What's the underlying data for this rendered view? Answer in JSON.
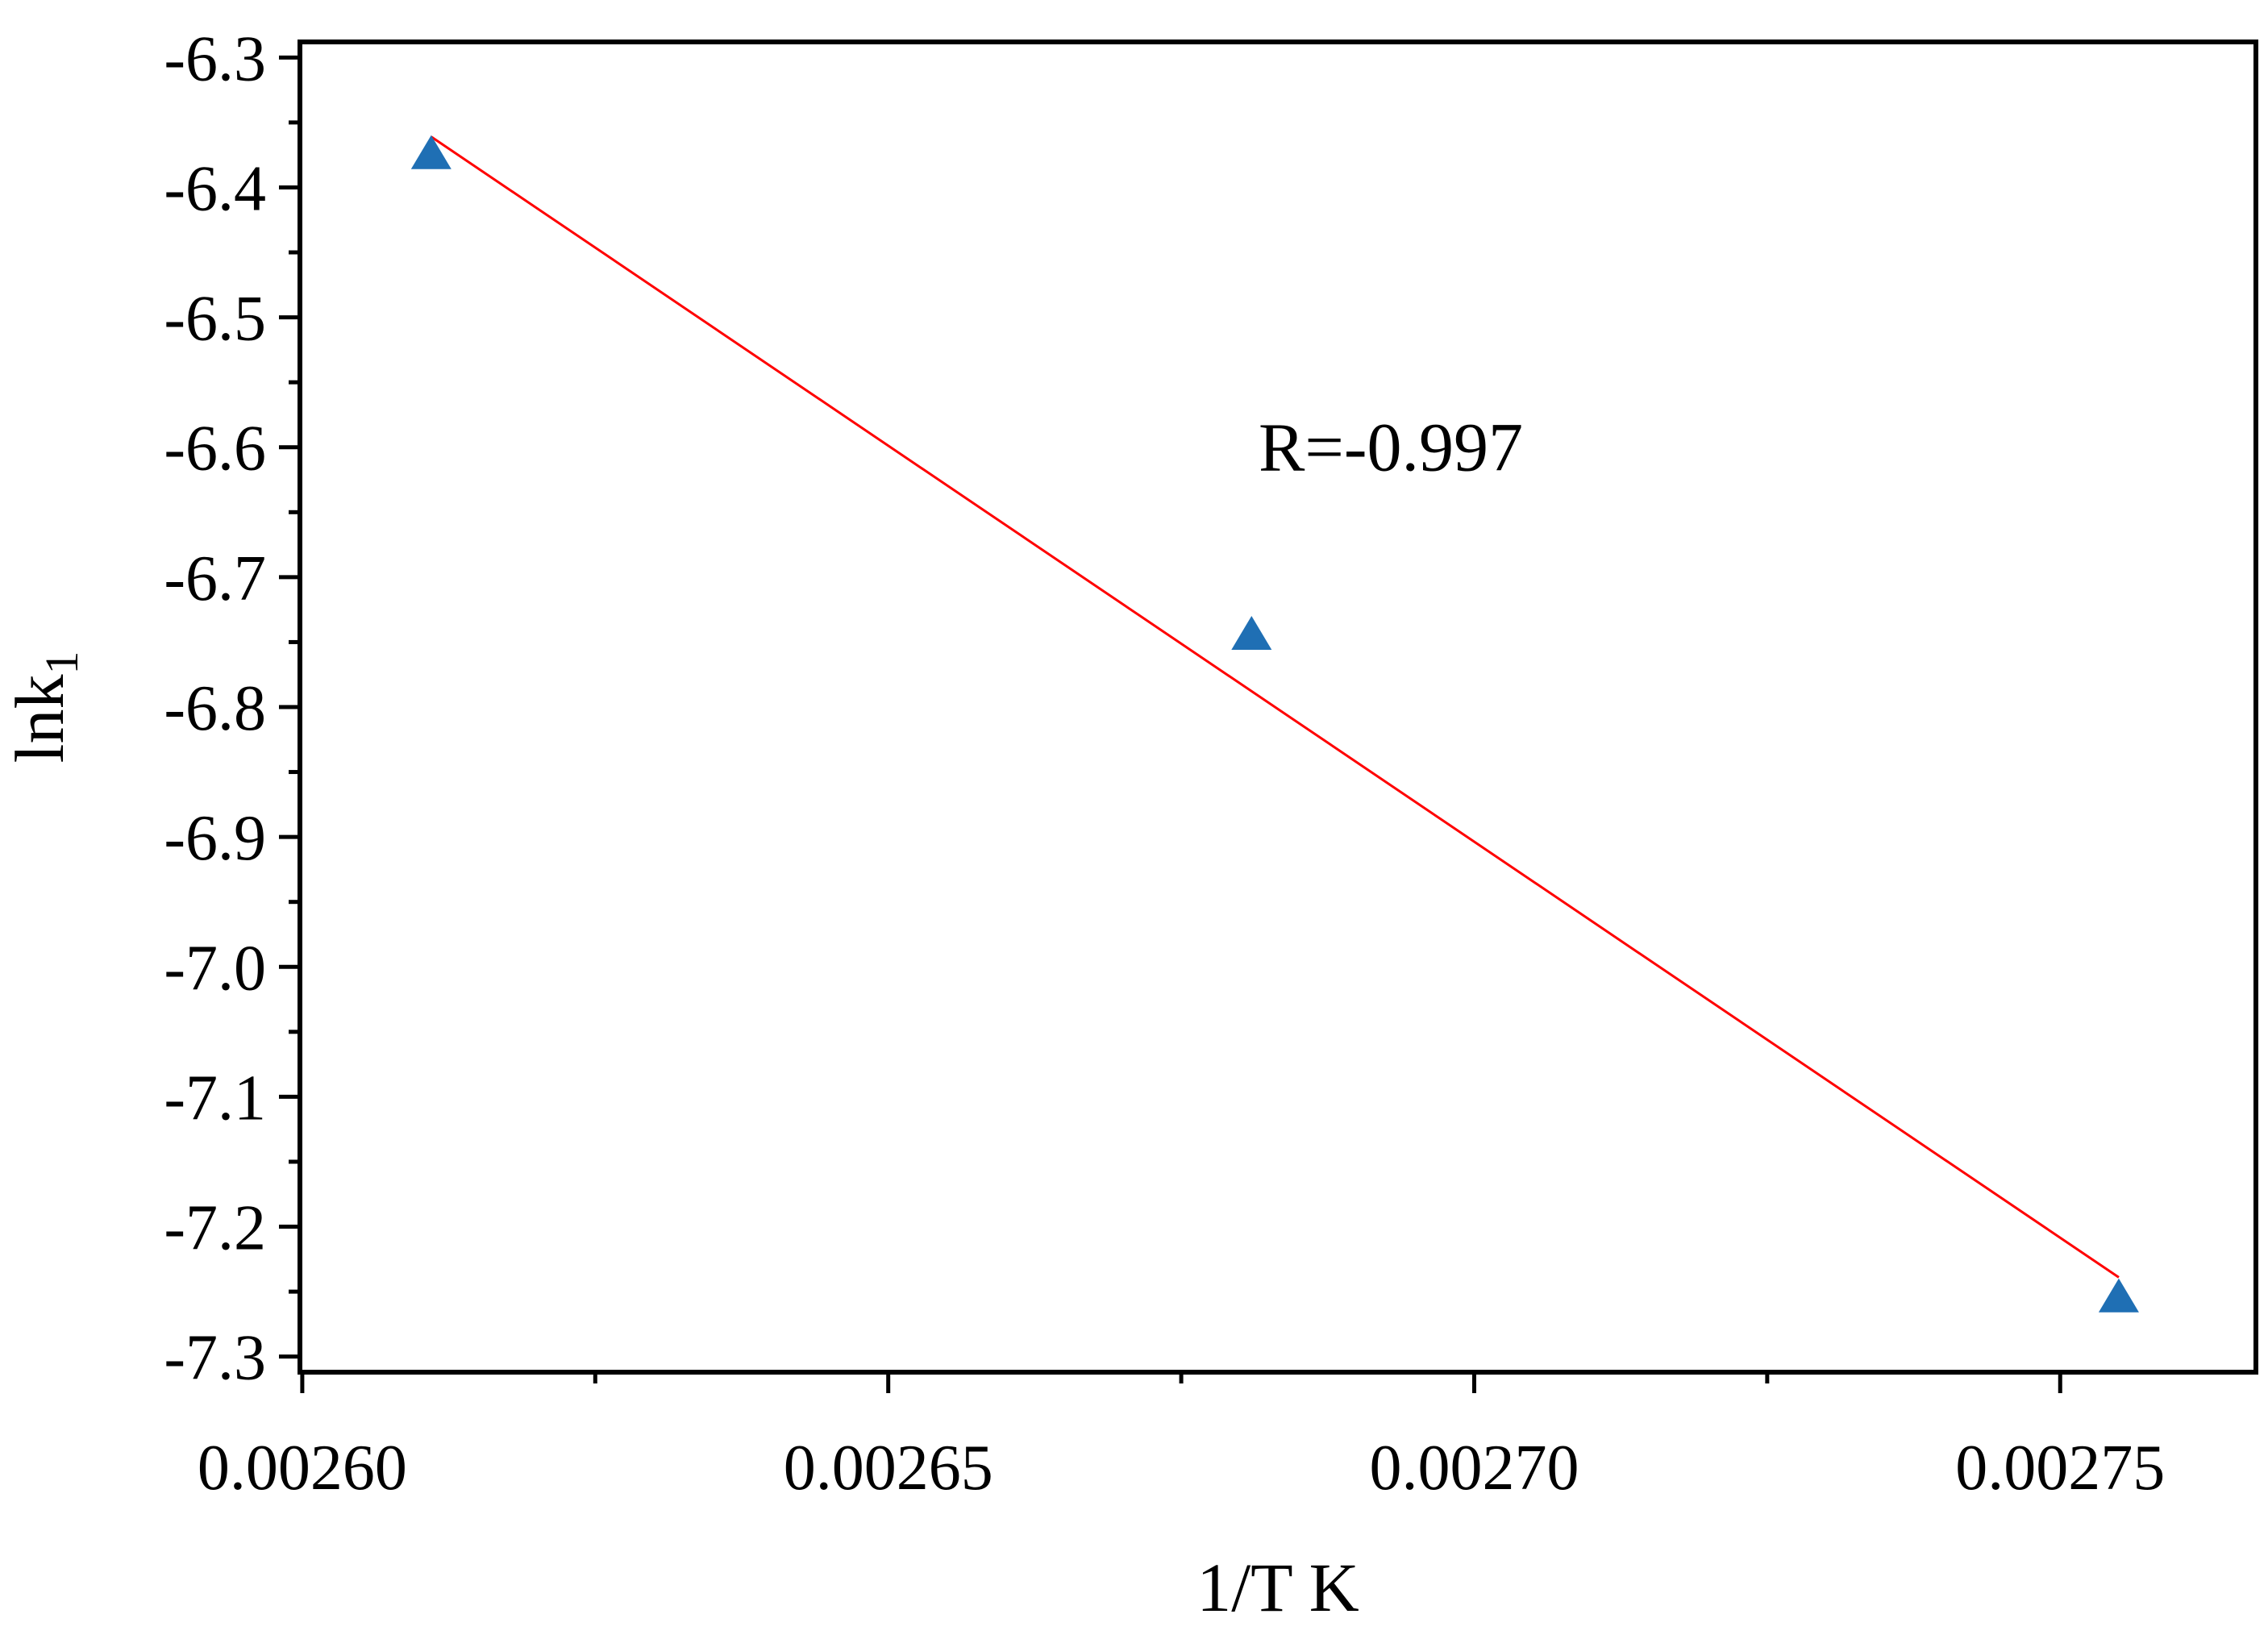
{
  "chart_data": {
    "type": "scatter",
    "xlabel": "1/T K",
    "ylabel": "lnk",
    "ylabel_subscript": "1",
    "xlim": [
      0.0025998,
      0.0027667
    ],
    "ylim": [
      -7.312,
      -6.288
    ],
    "x_ticks": [
      0.0026,
      0.00265,
      0.0027,
      0.00275
    ],
    "x_tick_labels": [
      "0.00260",
      "0.00265",
      "0.00270",
      "0.00275"
    ],
    "x_minor_ticks": [
      0.002625,
      0.002675,
      0.002725
    ],
    "y_ticks": [
      -6.3,
      -6.4,
      -6.5,
      -6.6,
      -6.7,
      -6.8,
      -6.9,
      -7.0,
      -7.1,
      -7.2,
      -7.3
    ],
    "y_tick_labels": [
      "-6.3",
      "-6.4",
      "-6.5",
      "-6.6",
      "-6.7",
      "-6.8",
      "-6.9",
      "-7.0",
      "-7.1",
      "-7.2",
      "-7.3"
    ],
    "y_minor_ticks": [
      -6.35,
      -6.45,
      -6.55,
      -6.65,
      -6.75,
      -6.85,
      -6.95,
      -7.05,
      -7.15,
      -7.25
    ],
    "grid": false,
    "series": [
      {
        "marker": "triangle",
        "color": "#1f6fb4",
        "x": [
          0.002611,
          0.002681,
          0.002755
        ],
        "y": [
          -6.376,
          -6.746,
          -7.256
        ]
      }
    ],
    "fit_line": {
      "color": "#ff0000",
      "x": [
        0.002611,
        0.002755
      ],
      "y": [
        -6.361,
        -7.239
      ]
    },
    "annotation": {
      "text": "R=-0.997",
      "x": 0.0026816,
      "y": -6.618
    }
  }
}
